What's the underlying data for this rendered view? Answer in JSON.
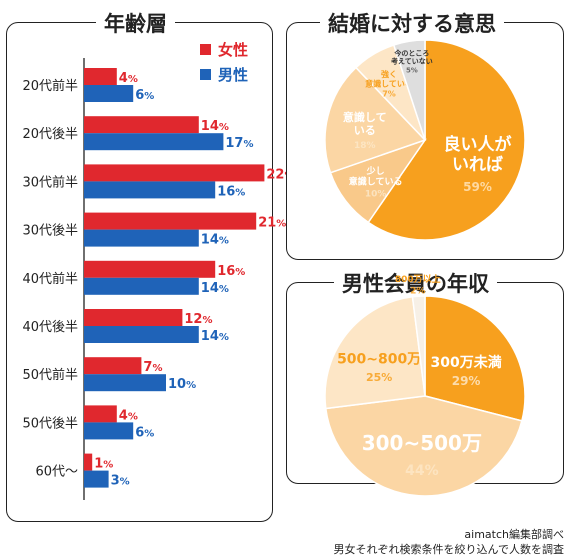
{
  "credit": {
    "line1": "aimatch編集部調べ",
    "line2": "男女それぞれ検索条件を絞り込んで人数を調査"
  },
  "chart_data": [
    {
      "type": "bar",
      "orientation": "horizontal",
      "title": "年齢層",
      "categories": [
        "20代前半",
        "20代後半",
        "30代前半",
        "30代後半",
        "40代前半",
        "40代後半",
        "50代前半",
        "50代後半",
        "60代〜"
      ],
      "series": [
        {
          "name": "女性",
          "color": "#e0282e",
          "values": [
            4,
            14,
            22,
            21,
            16,
            12,
            7,
            4,
            1
          ]
        },
        {
          "name": "男性",
          "color": "#1f63b8",
          "values": [
            6,
            17,
            16,
            14,
            14,
            14,
            10,
            6,
            3
          ]
        }
      ],
      "value_suffix": "%",
      "legend": "top-right"
    },
    {
      "type": "pie",
      "title": "結婚に対する意思",
      "slices": [
        {
          "label": "良い人がいれば",
          "value": 59,
          "color": "#f7a01e",
          "label_color": "#ffffff"
        },
        {
          "label": "少し意識している",
          "value": 10,
          "color": "#f9c98a",
          "label_color": "#ffffff"
        },
        {
          "label": "意識している",
          "value": 18,
          "color": "#fbd6a4",
          "label_color": "#ffffff"
        },
        {
          "label": "強く意識している",
          "value": 7,
          "color": "#fde6c6",
          "label_color": "#f7a01e"
        },
        {
          "label": "今のところ考えていない",
          "value": 5,
          "color": "#dedede",
          "label_color": "#333333"
        }
      ],
      "value_suffix": "%"
    },
    {
      "type": "pie",
      "title": "男性会員の年収",
      "slices": [
        {
          "label": "300万未満",
          "value": 29,
          "color": "#f7a01e",
          "label_color": "#ffffff"
        },
        {
          "label": "300~500万",
          "value": 44,
          "color": "#fbd6a4",
          "label_color": "#ffffff"
        },
        {
          "label": "500~800万",
          "value": 25,
          "color": "#fde6c6",
          "label_color": "#f7a01e"
        },
        {
          "label": "800万以上",
          "value": 2,
          "color": "#f7f0e6",
          "label_color": "#f7a01e"
        }
      ],
      "value_suffix": "%"
    }
  ]
}
